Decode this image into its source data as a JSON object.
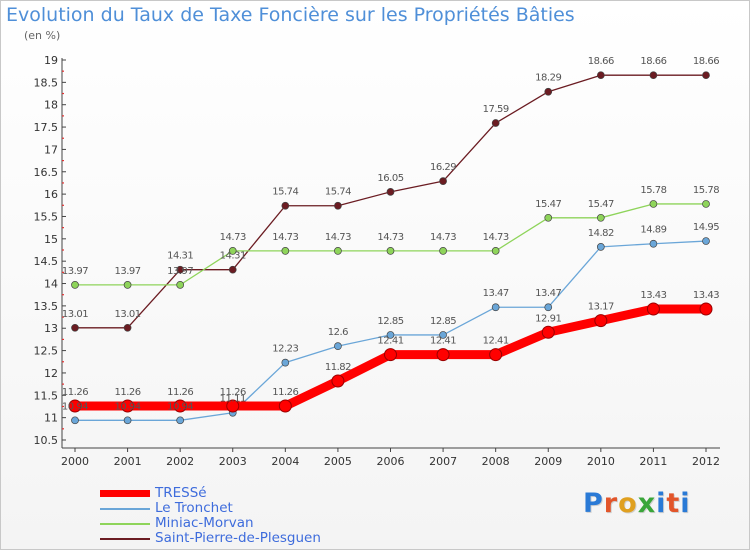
{
  "header": {
    "title": "Evolution du Taux de Taxe Foncière sur les Propriétés Bâties",
    "unit": "(en %)"
  },
  "logo": {
    "text": "Proxiti",
    "letter_colors": [
      "#2a7ad6",
      "#e2552a",
      "#e0a020",
      "#3aa63a",
      "#2a7ad6",
      "#e2552a",
      "#2a7ad6"
    ]
  },
  "chart_data": {
    "type": "line",
    "x": [
      "2000",
      "2001",
      "2002",
      "2003",
      "2004",
      "2005",
      "2006",
      "2007",
      "2008",
      "2009",
      "2010",
      "2011",
      "2012"
    ],
    "ylim": [
      10.5,
      19
    ],
    "yticks": [
      "10.5",
      "11",
      "11.5",
      "12",
      "12.5",
      "13",
      "13.5",
      "14",
      "14.5",
      "15",
      "15.5",
      "16",
      "16.5",
      "17",
      "17.5",
      "18",
      "18.5",
      "19"
    ],
    "grid": false,
    "legend_position": "bottom-left",
    "series": [
      {
        "name": "TRESSé",
        "color": "#ff0000",
        "values": [
          11.26,
          11.26,
          11.26,
          11.26,
          11.26,
          11.82,
          12.41,
          12.41,
          12.41,
          12.91,
          13.17,
          13.43,
          13.43
        ],
        "labels": [
          "11.26",
          "11.26",
          "11.26",
          "11.26",
          "11.26",
          "11.82",
          "12.41",
          "12.41",
          "12.41",
          "12.91",
          "13.17",
          "13.43",
          "13.43"
        ]
      },
      {
        "name": "Le Tronchet",
        "color": "#6aa6d8",
        "values": [
          10.94,
          10.94,
          10.94,
          11.11,
          12.23,
          12.6,
          12.85,
          12.85,
          13.47,
          13.47,
          14.82,
          14.89,
          14.95
        ],
        "labels": [
          "10.94",
          "10.94",
          "10.94",
          "11.11",
          "12.23",
          "12.6",
          "12.85",
          "12.85",
          "13.47",
          "13.47",
          "14.82",
          "14.89",
          "14.95"
        ]
      },
      {
        "name": "Miniac-Morvan",
        "color": "#8ed45a",
        "values": [
          13.97,
          13.97,
          13.97,
          14.73,
          14.73,
          14.73,
          14.73,
          14.73,
          14.73,
          15.47,
          15.47,
          15.78,
          15.78
        ],
        "labels": [
          "13.97",
          "13.97",
          "13.97",
          "14.73",
          "14.73",
          "14.73",
          "14.73",
          "14.73",
          "14.73",
          "15.47",
          "15.47",
          "15.78",
          "15.78"
        ]
      },
      {
        "name": "Saint-Pierre-de-Plesguen",
        "color": "#6b1c22",
        "values": [
          13.01,
          13.01,
          14.31,
          14.31,
          15.74,
          15.74,
          16.05,
          16.29,
          17.59,
          18.29,
          18.66,
          18.66,
          18.66
        ],
        "labels": [
          "13.01",
          "13.01",
          "14.31",
          "14.31",
          "15.74",
          "15.74",
          "16.05",
          "16.29",
          "17.59",
          "18.29",
          "18.66",
          "18.66",
          "18.66"
        ]
      }
    ]
  }
}
